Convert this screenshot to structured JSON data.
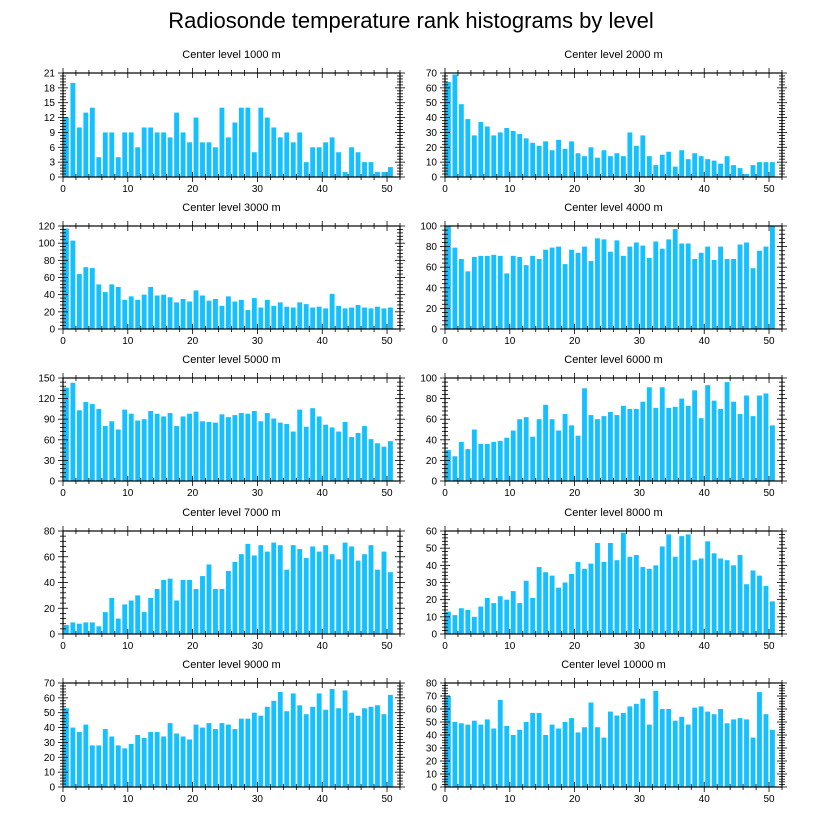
{
  "title": "Radiosonde temperature rank histograms by level",
  "colors": {
    "bar": "#14c0ff",
    "axis": "#000000",
    "background": "#ffffff"
  },
  "chart_data": [
    {
      "type": "bar",
      "title": "Center level 1000 m",
      "xlim": [
        0,
        52
      ],
      "ylim": [
        0,
        21
      ],
      "xticks": [
        0,
        10,
        20,
        30,
        40,
        50
      ],
      "yticks": [
        0,
        3,
        6,
        9,
        12,
        15,
        18,
        21
      ],
      "x_start": 0,
      "values": [
        12,
        19,
        10,
        13,
        14,
        4,
        9,
        9,
        4,
        9,
        9,
        6,
        10,
        10,
        9,
        9,
        8,
        13,
        9,
        7,
        12,
        7,
        7,
        6,
        14,
        8,
        11,
        14,
        14,
        5,
        14,
        12,
        10,
        8,
        9,
        7,
        9,
        3,
        6,
        6,
        7,
        8,
        5,
        1,
        6,
        5,
        3,
        3,
        1,
        1,
        2
      ]
    },
    {
      "type": "bar",
      "title": "Center level 2000 m",
      "xlim": [
        0,
        52
      ],
      "ylim": [
        0,
        70
      ],
      "xticks": [
        0,
        10,
        20,
        30,
        40,
        50
      ],
      "yticks": [
        0,
        10,
        20,
        30,
        40,
        50,
        60,
        70
      ],
      "x_start": 0,
      "values": [
        64,
        69,
        49,
        39,
        28,
        37,
        34,
        28,
        30,
        33,
        31,
        29,
        26,
        23,
        21,
        24,
        18,
        25,
        19,
        24,
        16,
        14,
        20,
        13,
        18,
        14,
        16,
        14,
        30,
        21,
        28,
        14,
        8,
        15,
        17,
        7,
        18,
        12,
        16,
        14,
        12,
        11,
        9,
        14,
        8,
        6,
        2,
        8,
        10,
        10,
        10
      ]
    },
    {
      "type": "bar",
      "title": "Center level 3000 m",
      "xlim": [
        0,
        52
      ],
      "ylim": [
        0,
        120
      ],
      "xticks": [
        0,
        10,
        20,
        30,
        40,
        50
      ],
      "yticks": [
        0,
        20,
        40,
        60,
        80,
        100,
        120
      ],
      "x_start": 0,
      "values": [
        117,
        103,
        64,
        72,
        71,
        52,
        43,
        52,
        49,
        34,
        38,
        34,
        40,
        49,
        39,
        40,
        37,
        31,
        35,
        32,
        45,
        39,
        33,
        35,
        27,
        38,
        32,
        34,
        22,
        36,
        25,
        34,
        27,
        31,
        26,
        25,
        31,
        29,
        25,
        26,
        24,
        41,
        27,
        24,
        25,
        28,
        25,
        24,
        26,
        24,
        25
      ]
    },
    {
      "type": "bar",
      "title": "Center level 4000 m",
      "xlim": [
        0,
        52
      ],
      "ylim": [
        0,
        100
      ],
      "xticks": [
        0,
        10,
        20,
        30,
        40,
        50
      ],
      "yticks": [
        0,
        20,
        40,
        60,
        80,
        100
      ],
      "x_start": 0,
      "values": [
        100,
        79,
        68,
        56,
        70,
        71,
        71,
        72,
        71,
        54,
        71,
        70,
        62,
        71,
        68,
        77,
        79,
        80,
        63,
        77,
        74,
        80,
        66,
        88,
        87,
        75,
        86,
        71,
        80,
        84,
        81,
        69,
        85,
        78,
        87,
        97,
        83,
        83,
        68,
        74,
        80,
        67,
        80,
        68,
        68,
        82,
        84,
        59,
        76,
        80,
        100
      ]
    },
    {
      "type": "bar",
      "title": "Center level 5000 m",
      "xlim": [
        0,
        52
      ],
      "ylim": [
        0,
        150
      ],
      "xticks": [
        0,
        10,
        20,
        30,
        40,
        50
      ],
      "yticks": [
        0,
        30,
        60,
        90,
        120,
        150
      ],
      "x_start": 0,
      "values": [
        136,
        143,
        103,
        115,
        112,
        105,
        80,
        87,
        75,
        104,
        98,
        88,
        90,
        102,
        98,
        94,
        99,
        80,
        94,
        98,
        101,
        87,
        86,
        85,
        97,
        93,
        96,
        99,
        98,
        102,
        87,
        99,
        91,
        85,
        83,
        72,
        104,
        79,
        106,
        94,
        82,
        78,
        72,
        86,
        64,
        70,
        80,
        61,
        55,
        50,
        58
      ]
    },
    {
      "type": "bar",
      "title": "Center level 6000 m",
      "xlim": [
        0,
        52
      ],
      "ylim": [
        0,
        100
      ],
      "xticks": [
        0,
        10,
        20,
        30,
        40,
        50
      ],
      "yticks": [
        0,
        20,
        40,
        60,
        80,
        100
      ],
      "x_start": 0,
      "values": [
        30,
        24,
        38,
        31,
        50,
        36,
        36,
        38,
        39,
        42,
        49,
        60,
        62,
        43,
        60,
        74,
        60,
        49,
        65,
        54,
        44,
        90,
        64,
        60,
        63,
        67,
        64,
        73,
        70,
        70,
        77,
        91,
        71,
        91,
        71,
        72,
        80,
        73,
        88,
        61,
        93,
        78,
        70,
        96,
        77,
        65,
        83,
        63,
        83,
        85,
        54
      ]
    },
    {
      "type": "bar",
      "title": "Center level 7000 m",
      "xlim": [
        0,
        52
      ],
      "ylim": [
        0,
        80
      ],
      "xticks": [
        0,
        10,
        20,
        30,
        40,
        50
      ],
      "yticks": [
        0,
        20,
        40,
        60,
        80
      ],
      "x_start": 0,
      "values": [
        7,
        9,
        8,
        9,
        9,
        6,
        17,
        28,
        12,
        23,
        26,
        30,
        17,
        28,
        35,
        42,
        43,
        26,
        42,
        42,
        35,
        45,
        54,
        35,
        35,
        49,
        56,
        62,
        70,
        61,
        69,
        64,
        71,
        69,
        50,
        69,
        66,
        59,
        68,
        64,
        69,
        62,
        58,
        71,
        68,
        57,
        62,
        69,
        50,
        64,
        48
      ]
    },
    {
      "type": "bar",
      "title": "Center level 8000 m",
      "xlim": [
        0,
        52
      ],
      "ylim": [
        0,
        60
      ],
      "xticks": [
        0,
        10,
        20,
        30,
        40,
        50
      ],
      "yticks": [
        0,
        10,
        20,
        30,
        40,
        50,
        60
      ],
      "x_start": 0,
      "values": [
        13,
        11,
        15,
        14,
        10,
        16,
        21,
        18,
        22,
        20,
        25,
        18,
        31,
        21,
        39,
        36,
        34,
        27,
        30,
        35,
        42,
        38,
        41,
        53,
        42,
        53,
        43,
        59,
        45,
        46,
        39,
        38,
        40,
        51,
        58,
        45,
        57,
        58,
        43,
        44,
        54,
        47,
        44,
        43,
        40,
        46,
        29,
        37,
        34,
        28,
        19
      ]
    },
    {
      "type": "bar",
      "title": "Center level 9000 m",
      "xlim": [
        0,
        52
      ],
      "ylim": [
        0,
        70
      ],
      "xticks": [
        0,
        10,
        20,
        30,
        40,
        50
      ],
      "yticks": [
        0,
        10,
        20,
        30,
        40,
        50,
        60,
        70
      ],
      "x_start": 0,
      "values": [
        53,
        40,
        37,
        42,
        28,
        28,
        39,
        34,
        28,
        26,
        29,
        35,
        33,
        37,
        37,
        34,
        43,
        36,
        34,
        32,
        42,
        40,
        43,
        39,
        43,
        42,
        39,
        46,
        46,
        50,
        48,
        54,
        58,
        64,
        51,
        63,
        55,
        49,
        54,
        63,
        52,
        66,
        53,
        65,
        50,
        48,
        53,
        54,
        55,
        49,
        62
      ]
    },
    {
      "type": "bar",
      "title": "Center level 10000 m",
      "xlim": [
        0,
        52
      ],
      "ylim": [
        0,
        80
      ],
      "xticks": [
        0,
        10,
        20,
        30,
        40,
        50
      ],
      "yticks": [
        0,
        10,
        20,
        30,
        40,
        50,
        60,
        70,
        80
      ],
      "x_start": 0,
      "values": [
        70,
        50,
        49,
        48,
        51,
        48,
        52,
        45,
        67,
        47,
        40,
        44,
        50,
        57,
        57,
        40,
        48,
        45,
        50,
        53,
        42,
        46,
        65,
        46,
        38,
        58,
        55,
        57,
        62,
        64,
        68,
        48,
        74,
        60,
        60,
        51,
        54,
        48,
        61,
        62,
        58,
        56,
        60,
        49,
        52,
        53,
        52,
        38,
        73,
        56,
        44
      ]
    }
  ]
}
